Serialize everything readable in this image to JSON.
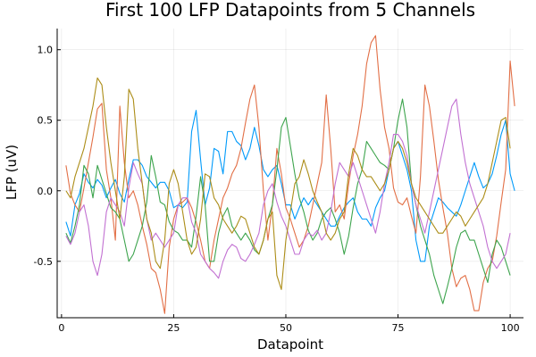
{
  "chart_data": {
    "type": "line",
    "title": "First 100 LFP Datapoints from 5 Channels",
    "xlabel": "Datapoint",
    "ylabel": "LFP (uV)",
    "xlim": [
      -0.97,
      102.97
    ],
    "ylim": [
      -0.9,
      1.15
    ],
    "xticks": [
      0,
      25,
      50,
      75,
      100
    ],
    "xtick_labels": [
      "0",
      "25",
      "50",
      "75",
      "100"
    ],
    "yticks": [
      -0.5,
      0.0,
      0.5,
      1.0
    ],
    "ytick_labels": [
      "-0.5",
      "0.0",
      "0.5",
      "1.0"
    ],
    "grid": true,
    "legend": "none",
    "x_start": 1,
    "series": [
      {
        "color": "#009AFA",
        "values": [
          -0.22,
          -0.32,
          -0.1,
          -0.02,
          0.12,
          0.06,
          0.02,
          0.08,
          0.04,
          -0.05,
          0.02,
          0.08,
          -0.02,
          -0.08,
          0.08,
          0.22,
          0.22,
          0.18,
          0.1,
          0.06,
          0.02,
          0.06,
          0.06,
          0.0,
          -0.12,
          -0.1,
          -0.12,
          -0.08,
          0.42,
          0.57,
          0.22,
          -0.1,
          0.02,
          0.3,
          0.28,
          0.12,
          0.42,
          0.42,
          0.35,
          0.32,
          0.22,
          0.3,
          0.45,
          0.32,
          0.15,
          0.1,
          0.15,
          0.18,
          0.05,
          -0.1,
          -0.1,
          -0.2,
          -0.12,
          -0.05,
          -0.1,
          -0.05,
          -0.1,
          -0.15,
          -0.2,
          -0.25,
          -0.25,
          -0.18,
          -0.12,
          -0.08,
          -0.05,
          -0.15,
          -0.2,
          -0.2,
          -0.25,
          -0.12,
          -0.05,
          0.0,
          0.15,
          0.3,
          0.35,
          0.25,
          0.15,
          0.0,
          -0.35,
          -0.5,
          -0.5,
          -0.25,
          -0.15,
          -0.05,
          -0.08,
          -0.12,
          -0.15,
          -0.18,
          -0.1,
          0.0,
          0.1,
          0.2,
          0.1,
          0.02,
          0.05,
          0.12,
          0.25,
          0.4,
          0.5,
          0.12,
          0.0
        ]
      },
      {
        "color": "#E26F46",
        "values": [
          0.18,
          -0.02,
          -0.1,
          -0.15,
          0.02,
          0.2,
          0.38,
          0.58,
          0.62,
          0.15,
          -0.05,
          -0.35,
          0.6,
          0.2,
          -0.05,
          0.0,
          -0.1,
          -0.25,
          -0.38,
          -0.55,
          -0.58,
          -0.7,
          -0.87,
          -0.4,
          -0.2,
          -0.1,
          -0.08,
          -0.05,
          -0.12,
          -0.22,
          -0.35,
          -0.5,
          -0.55,
          -0.35,
          -0.2,
          -0.05,
          0.02,
          0.12,
          0.18,
          0.3,
          0.48,
          0.65,
          0.75,
          0.45,
          0.0,
          -0.35,
          -0.1,
          0.3,
          0.12,
          -0.12,
          -0.2,
          -0.3,
          -0.4,
          -0.35,
          -0.25,
          -0.1,
          0.05,
          0.2,
          0.68,
          0.3,
          -0.15,
          -0.1,
          -0.2,
          0.05,
          0.25,
          0.4,
          0.6,
          0.9,
          1.05,
          1.1,
          0.72,
          0.45,
          0.3,
          0.02,
          -0.08,
          -0.1,
          -0.05,
          -0.18,
          -0.3,
          0.1,
          0.75,
          0.6,
          0.35,
          0.08,
          -0.12,
          -0.3,
          -0.55,
          -0.68,
          -0.62,
          -0.6,
          -0.7,
          -0.85,
          -0.85,
          -0.65,
          -0.55,
          -0.5,
          -0.32,
          -0.08,
          0.15,
          0.92,
          0.6
        ]
      },
      {
        "color": "#3DA44D",
        "values": [
          -0.3,
          -0.37,
          -0.25,
          -0.1,
          0.18,
          0.12,
          -0.05,
          0.18,
          0.08,
          -0.02,
          -0.12,
          -0.15,
          -0.2,
          -0.35,
          -0.5,
          -0.45,
          -0.35,
          -0.25,
          -0.08,
          0.25,
          0.1,
          -0.08,
          -0.1,
          -0.22,
          -0.28,
          -0.3,
          -0.35,
          -0.35,
          -0.4,
          -0.18,
          0.1,
          -0.1,
          -0.5,
          -0.5,
          -0.3,
          -0.18,
          -0.12,
          -0.25,
          -0.3,
          -0.35,
          -0.3,
          -0.35,
          -0.42,
          -0.45,
          -0.35,
          -0.2,
          -0.1,
          0.15,
          0.45,
          0.52,
          0.32,
          0.12,
          -0.05,
          -0.15,
          -0.28,
          -0.35,
          -0.3,
          -0.2,
          -0.15,
          -0.12,
          -0.2,
          -0.3,
          -0.45,
          -0.32,
          -0.12,
          0.05,
          0.15,
          0.35,
          0.3,
          0.25,
          0.2,
          0.18,
          0.15,
          0.3,
          0.5,
          0.65,
          0.45,
          0.05,
          -0.1,
          -0.25,
          -0.35,
          -0.45,
          -0.6,
          -0.7,
          -0.8,
          -0.68,
          -0.55,
          -0.4,
          -0.3,
          -0.28,
          -0.35,
          -0.35,
          -0.45,
          -0.55,
          -0.65,
          -0.45,
          -0.35,
          -0.4,
          -0.5,
          -0.6
        ]
      },
      {
        "color": "#C271D2",
        "values": [
          -0.32,
          -0.38,
          -0.3,
          -0.15,
          -0.1,
          -0.25,
          -0.5,
          -0.6,
          -0.45,
          -0.15,
          -0.05,
          -0.1,
          -0.15,
          -0.25,
          0.02,
          0.2,
          0.12,
          0.05,
          -0.2,
          -0.35,
          -0.3,
          -0.35,
          -0.4,
          -0.35,
          -0.3,
          -0.1,
          -0.05,
          -0.05,
          -0.22,
          -0.3,
          -0.45,
          -0.5,
          -0.55,
          -0.58,
          -0.62,
          -0.5,
          -0.42,
          -0.38,
          -0.4,
          -0.48,
          -0.5,
          -0.45,
          -0.38,
          -0.3,
          -0.1,
          0.0,
          0.05,
          -0.08,
          -0.18,
          -0.25,
          -0.35,
          -0.45,
          -0.45,
          -0.35,
          -0.3,
          -0.32,
          -0.28,
          -0.35,
          -0.3,
          -0.15,
          0.05,
          0.2,
          0.15,
          0.1,
          0.2,
          0.1,
          0.0,
          -0.1,
          -0.2,
          -0.3,
          -0.15,
          0.05,
          0.2,
          0.4,
          0.4,
          0.35,
          0.25,
          0.05,
          -0.1,
          -0.2,
          -0.3,
          -0.15,
          0.0,
          0.15,
          0.3,
          0.45,
          0.6,
          0.65,
          0.4,
          0.2,
          0.05,
          -0.05,
          -0.15,
          -0.25,
          -0.4,
          -0.5,
          -0.55,
          -0.5,
          -0.45,
          -0.3
        ]
      },
      {
        "color": "#AC8D18",
        "values": [
          0.0,
          -0.05,
          0.1,
          0.2,
          0.3,
          0.45,
          0.6,
          0.8,
          0.75,
          0.45,
          0.2,
          0.0,
          -0.2,
          0.1,
          0.72,
          0.65,
          0.3,
          0.05,
          -0.2,
          -0.3,
          -0.5,
          -0.55,
          -0.35,
          0.05,
          0.15,
          0.05,
          -0.15,
          -0.35,
          -0.45,
          -0.4,
          -0.2,
          0.12,
          0.1,
          -0.05,
          -0.1,
          -0.2,
          -0.25,
          -0.3,
          -0.25,
          -0.18,
          -0.2,
          -0.3,
          -0.4,
          -0.45,
          -0.35,
          -0.2,
          -0.15,
          -0.6,
          -0.7,
          -0.35,
          -0.15,
          0.05,
          0.1,
          0.22,
          0.12,
          0.0,
          -0.08,
          -0.15,
          -0.3,
          -0.35,
          -0.3,
          -0.2,
          -0.15,
          0.12,
          0.3,
          0.25,
          0.15,
          0.1,
          0.1,
          0.05,
          0.0,
          0.05,
          0.15,
          0.3,
          0.35,
          0.3,
          0.2,
          0.05,
          -0.05,
          -0.1,
          -0.15,
          -0.2,
          -0.25,
          -0.3,
          -0.3,
          -0.25,
          -0.2,
          -0.15,
          -0.18,
          -0.25,
          -0.2,
          -0.15,
          -0.1,
          -0.05,
          0.05,
          0.2,
          0.35,
          0.5,
          0.52,
          0.3
        ]
      }
    ]
  }
}
